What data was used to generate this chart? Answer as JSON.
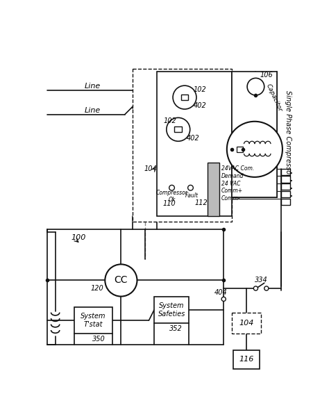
{
  "bg": "#ffffff",
  "lc": "#111111",
  "figsize": [
    4.74,
    6.03
  ],
  "dpi": 100,
  "labels": {
    "line1": "Line",
    "line2": "Line",
    "ref100": "100",
    "ref104_lbl": "104",
    "ref102_top": "102",
    "ref402_top": "402",
    "ref102_mid": "102",
    "ref402_mid": "402",
    "compressor_ok": "Compressor\nOk",
    "fault": "Fault",
    "ref110": "110",
    "ref112": "112",
    "ref106": "106",
    "capacitor": "Capacitor",
    "single_phase": "Single Phase Compressor",
    "vac24_com": "24VAC Com.",
    "demand": "Demand",
    "vac24": "24 VAC",
    "comm_plus": "Comm+",
    "comm_minus": "Comm-",
    "cc": "CC",
    "ref120": "120",
    "system_tstat": "System\nT'stat",
    "ref350": "350",
    "system_safeties": "System\nSafeties",
    "ref352": "352",
    "ref334": "334",
    "ref404": "404",
    "ref104_box": "104",
    "ref116": "116"
  }
}
